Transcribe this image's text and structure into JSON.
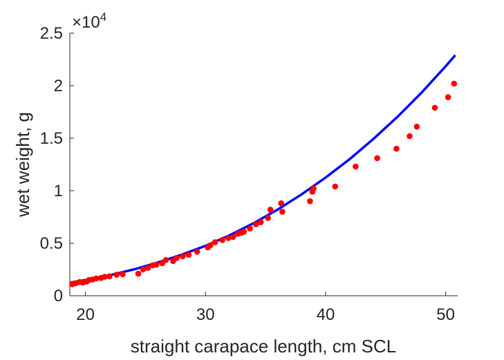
{
  "chart_data": {
    "type": "scatter",
    "title": "",
    "xlabel": "straight carapace length, cm SCL",
    "ylabel": "wet weight, g",
    "y_exponent_label": {
      "times": "×10",
      "power": "4"
    },
    "xlim": [
      18.7,
      51
    ],
    "ylim": [
      0,
      25000
    ],
    "xticks": [
      20,
      30,
      40,
      50
    ],
    "xtick_labels": [
      "20",
      "30",
      "40",
      "50"
    ],
    "yticks": [
      0,
      5000,
      10000,
      15000,
      20000,
      25000
    ],
    "ytick_labels": [
      "0",
      "0.5",
      "1",
      "1.5",
      "2",
      "2.5"
    ],
    "grid": false,
    "series": [
      {
        "kind": "points",
        "color": "#ff0000",
        "x": [
          18.9,
          19.2,
          19.5,
          19.8,
          20.1,
          20.3,
          20.6,
          20.9,
          21.3,
          21.6,
          22.0,
          22.6,
          23.1,
          24.4,
          24.8,
          25.2,
          25.6,
          25.9,
          26.4,
          26.7,
          27.3,
          27.6,
          28.1,
          28.6,
          29.3,
          30.2,
          30.4,
          30.8,
          31.4,
          31.9,
          32.3,
          32.7,
          33.0,
          33.2,
          33.7,
          34.2,
          34.6,
          35.2,
          35.4,
          36.3,
          36.4,
          38.7,
          38.9,
          39.0,
          40.8,
          42.5,
          44.3,
          45.9,
          47.0,
          47.6,
          49.1,
          50.2,
          50.7
        ],
        "y": [
          1100,
          1200,
          1300,
          1250,
          1350,
          1500,
          1550,
          1650,
          1700,
          1800,
          1850,
          2000,
          2050,
          2100,
          2500,
          2650,
          2900,
          2950,
          3100,
          3400,
          3300,
          3600,
          3750,
          3900,
          4200,
          4600,
          4800,
          5100,
          5300,
          5500,
          5600,
          5900,
          6000,
          6100,
          6400,
          6800,
          7000,
          7400,
          8200,
          8800,
          8000,
          9000,
          9900,
          10200,
          10400,
          12300,
          13100,
          14000,
          15200,
          16100,
          17900,
          18900,
          20200
        ]
      },
      {
        "kind": "fit-line",
        "color": "#0000ff",
        "x": [
          18.7,
          20,
          22,
          24,
          26,
          28,
          30,
          32,
          34,
          36,
          38,
          40,
          42,
          44,
          46,
          48,
          50,
          50.8
        ],
        "y": [
          1250,
          1500,
          1950,
          2500,
          3150,
          3900,
          4750,
          5750,
          6900,
          8200,
          9650,
          11250,
          13000,
          14950,
          17050,
          19350,
          21850,
          22900
        ]
      }
    ]
  }
}
